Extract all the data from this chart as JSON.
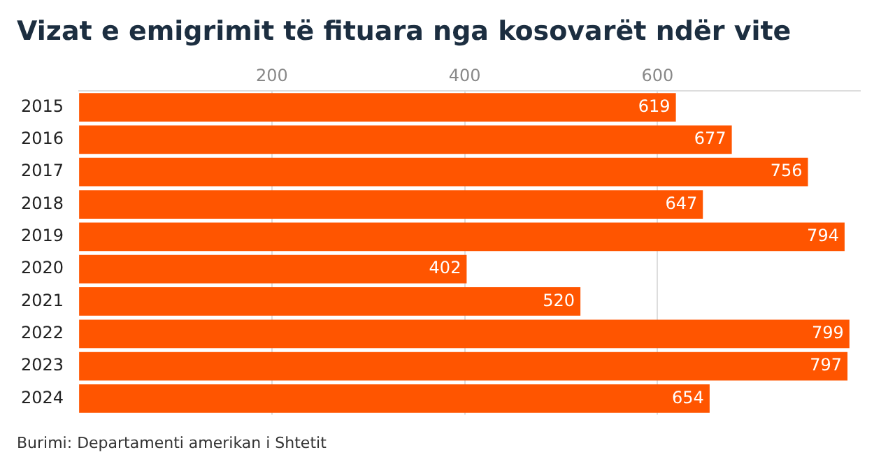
{
  "chart_data": {
    "type": "bar",
    "orientation": "horizontal",
    "title": "Vizat e emigrimit të fituara nga kosovarët ndër vite",
    "categories": [
      "2015",
      "2016",
      "2017",
      "2018",
      "2019",
      "2020",
      "2021",
      "2022",
      "2023",
      "2024"
    ],
    "values": [
      619,
      677,
      756,
      647,
      794,
      402,
      520,
      799,
      797,
      654
    ],
    "color": "#ff5500",
    "xlim": [
      0,
      810
    ],
    "xticks": [
      200,
      400,
      600
    ],
    "grid": "x",
    "data_labels": true,
    "annotations": [
      "Burimi: Departamenti amerikan i Shtetit"
    ]
  }
}
